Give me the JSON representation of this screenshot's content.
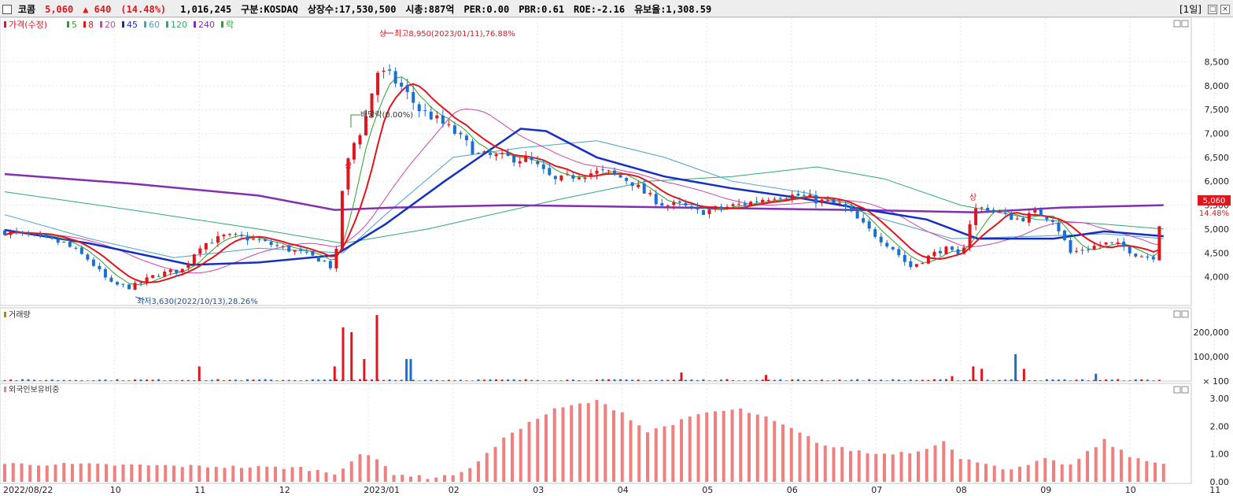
{
  "header": {
    "stock_name": "코콤",
    "price": "5,060",
    "change": "▲ 640",
    "change_pct": "(14.48%)",
    "volume": "1,016,245",
    "market": "구분:KOSDAQ",
    "listed_shares": "상장수:17,530,500",
    "market_cap": "시총:887억",
    "per": "PER:0.00",
    "pbr": "PBR:0.61",
    "roe": "ROE:-2.16",
    "float": "유보율:1,308.59",
    "period": "[1일]"
  },
  "colors": {
    "up": "#e0161f",
    "down": "#1a6fd0",
    "ma5": "#2ea02e",
    "ma8": "#e0161f",
    "ma20": "#cc44aa",
    "ma45": "#1530c0",
    "ma60": "#4aa0c8",
    "ma120": "#2ea870",
    "ma240": "#8030b0",
    "foreign": "#f08080"
  },
  "panels": {
    "price_legend": [
      {
        "label": "가격(수정)",
        "color": "#e0161f"
      },
      {
        "label": "5",
        "color": "#2ea02e"
      },
      {
        "label": "8",
        "color": "#e0161f"
      },
      {
        "label": "20",
        "color": "#cc44aa"
      },
      {
        "label": "45",
        "color": "#1530c0"
      },
      {
        "label": "60",
        "color": "#4aa0c8"
      },
      {
        "label": "120",
        "color": "#2ea870"
      },
      {
        "label": "240",
        "color": "#8030b0"
      },
      {
        "label": "락",
        "color": "#2ea02e"
      }
    ],
    "volume_legend": "거래량",
    "foreign_legend": "외국인보유비중"
  },
  "annotations": {
    "high": "최고8,950(2023/01/11),76.88%",
    "low": "최저3,630(2022/10/13),28.26%",
    "dividend": "배당락(0.00%)",
    "limit_up": "상",
    "current_price_tag": "5,060",
    "current_pct_tag": "14.48%"
  },
  "chart_data": [
    {
      "type": "candlestick",
      "panel": "price",
      "y_ticks": [
        4000,
        4500,
        5000,
        5500,
        6000,
        6500,
        7000,
        7500,
        8000,
        8500
      ],
      "y_tick_labels": [
        "4,000",
        "4,500",
        "5,000",
        "5,500",
        "6,000",
        "6,500",
        "7,000",
        "7,500",
        "8,000",
        "8,500"
      ],
      "ylim": [
        3400,
        9300
      ],
      "x_labels": [
        "2022/08/22",
        "10",
        "11",
        "12",
        "2023/01",
        "02",
        "03",
        "04",
        "05",
        "06",
        "07",
        "08",
        "09",
        "10",
        "11"
      ],
      "x_label_months": [
        0,
        1.3,
        2.3,
        3.3,
        4.3,
        5.3,
        6.3,
        7.3,
        8.3,
        9.3,
        10.3,
        11.3,
        12.3,
        13.3,
        14.3
      ],
      "close_anchors": [
        [
          0,
          4950
        ],
        [
          0.3,
          4850
        ],
        [
          0.7,
          4700
        ],
        [
          1.0,
          4350
        ],
        [
          1.25,
          3850
        ],
        [
          1.5,
          3780
        ],
        [
          1.8,
          4050
        ],
        [
          2.1,
          4150
        ],
        [
          2.3,
          4650
        ],
        [
          2.6,
          4850
        ],
        [
          2.9,
          4800
        ],
        [
          3.2,
          4650
        ],
        [
          3.5,
          4500
        ],
        [
          3.75,
          4350
        ],
        [
          3.9,
          4150
        ],
        [
          4.0,
          6000
        ],
        [
          4.1,
          6700
        ],
        [
          4.25,
          7200
        ],
        [
          4.4,
          8300
        ],
        [
          4.55,
          8200
        ],
        [
          4.7,
          7950
        ],
        [
          4.9,
          7500
        ],
        [
          5.1,
          7300
        ],
        [
          5.3,
          7050
        ],
        [
          5.6,
          6550
        ],
        [
          5.9,
          6500
        ],
        [
          6.2,
          6450
        ],
        [
          6.5,
          6000
        ],
        [
          6.8,
          6150
        ],
        [
          7.1,
          6200
        ],
        [
          7.4,
          6000
        ],
        [
          7.6,
          5700
        ],
        [
          7.8,
          5500
        ],
        [
          8.0,
          5500
        ],
        [
          8.2,
          5350
        ],
        [
          8.5,
          5450
        ],
        [
          8.8,
          5550
        ],
        [
          9.1,
          5700
        ],
        [
          9.4,
          5700
        ],
        [
          9.6,
          5600
        ],
        [
          9.9,
          5500
        ],
        [
          10.2,
          5000
        ],
        [
          10.5,
          4600
        ],
        [
          10.7,
          4200
        ],
        [
          10.9,
          4400
        ],
        [
          11.1,
          4600
        ],
        [
          11.3,
          4400
        ],
        [
          11.45,
          5400
        ],
        [
          11.6,
          5450
        ],
        [
          11.8,
          5300
        ],
        [
          12.0,
          5200
        ],
        [
          12.2,
          5350
        ],
        [
          12.4,
          5200
        ],
        [
          12.6,
          4500
        ],
        [
          12.8,
          4600
        ],
        [
          13.0,
          4700
        ],
        [
          13.2,
          4650
        ],
        [
          13.4,
          4450
        ],
        [
          13.6,
          4420
        ],
        [
          13.7,
          5060
        ]
      ],
      "ma_anchors": {
        "ma45": [
          [
            0,
            4980
          ],
          [
            1.0,
            4700
          ],
          [
            2.2,
            4250
          ],
          [
            3.0,
            4300
          ],
          [
            3.9,
            4450
          ],
          [
            4.5,
            5100
          ],
          [
            5.2,
            6000
          ],
          [
            6.1,
            7100
          ],
          [
            6.4,
            7050
          ],
          [
            7.0,
            6500
          ],
          [
            7.8,
            6100
          ],
          [
            8.6,
            5850
          ],
          [
            9.4,
            5650
          ],
          [
            10.2,
            5400
          ],
          [
            10.9,
            5200
          ],
          [
            11.5,
            4800
          ],
          [
            12.4,
            4800
          ],
          [
            13.0,
            4950
          ],
          [
            13.7,
            4850
          ]
        ],
        "ma240": [
          [
            0,
            6150
          ],
          [
            1.5,
            5950
          ],
          [
            3.0,
            5700
          ],
          [
            3.9,
            5400
          ],
          [
            4.6,
            5450
          ],
          [
            6.0,
            5500
          ],
          [
            8.0,
            5450
          ],
          [
            10.0,
            5400
          ],
          [
            11.5,
            5350
          ],
          [
            12.5,
            5450
          ],
          [
            13.7,
            5500
          ]
        ],
        "ma120": [
          [
            0,
            5780
          ],
          [
            1.5,
            5400
          ],
          [
            3.0,
            5000
          ],
          [
            4.0,
            4700
          ],
          [
            5.0,
            5000
          ],
          [
            6.5,
            5600
          ],
          [
            7.6,
            6000
          ],
          [
            8.6,
            6100
          ],
          [
            9.6,
            6300
          ],
          [
            10.4,
            6050
          ],
          [
            11.3,
            5500
          ],
          [
            12.2,
            5200
          ],
          [
            13.0,
            5100
          ],
          [
            13.7,
            5000
          ]
        ],
        "ma60": [
          [
            0,
            5300
          ],
          [
            1.0,
            4800
          ],
          [
            2.0,
            4400
          ],
          [
            3.0,
            4600
          ],
          [
            4.0,
            4500
          ],
          [
            4.5,
            5300
          ],
          [
            5.3,
            6500
          ],
          [
            6.1,
            6700
          ],
          [
            7.0,
            6850
          ],
          [
            7.8,
            6500
          ],
          [
            8.6,
            6000
          ],
          [
            9.5,
            5750
          ],
          [
            10.4,
            5200
          ],
          [
            11.2,
            4800
          ],
          [
            12.2,
            4850
          ],
          [
            13.0,
            4900
          ],
          [
            13.7,
            4800
          ]
        ]
      },
      "high": 8950,
      "low": 3630,
      "last_close": 5060
    },
    {
      "type": "bar",
      "panel": "volume",
      "y_ticks": [
        100,
        100000,
        200000
      ],
      "y_tick_labels": [
        "× 100",
        "100,000",
        "200,000"
      ],
      "ylim": [
        0,
        290000
      ],
      "spikes": [
        [
          2.3,
          60000,
          "up"
        ],
        [
          3.9,
          60000,
          "up"
        ],
        [
          4.0,
          220000,
          "up"
        ],
        [
          4.1,
          200000,
          "up"
        ],
        [
          4.25,
          90000,
          "up"
        ],
        [
          4.4,
          270000,
          "up"
        ],
        [
          4.75,
          90000,
          "down"
        ],
        [
          4.8,
          90000,
          "down"
        ],
        [
          8.0,
          35000,
          "up"
        ],
        [
          9.0,
          25000,
          "up"
        ],
        [
          11.2,
          20000,
          "up"
        ],
        [
          11.45,
          60000,
          "up"
        ],
        [
          11.55,
          50000,
          "up"
        ],
        [
          11.95,
          110000,
          "down"
        ],
        [
          12.05,
          50000,
          "up"
        ],
        [
          12.9,
          30000,
          "down"
        ]
      ]
    },
    {
      "type": "bar",
      "panel": "foreign",
      "y_ticks": [
        0,
        1,
        2,
        3
      ],
      "y_tick_labels": [
        "0.00",
        "1.00",
        "2.00",
        "3.00"
      ],
      "ylim": [
        0,
        3.4
      ],
      "anchors": [
        [
          0,
          0.65
        ],
        [
          1.5,
          0.6
        ],
        [
          2.5,
          0.55
        ],
        [
          3.5,
          0.5
        ],
        [
          3.9,
          0.3
        ],
        [
          4.2,
          1.0
        ],
        [
          4.4,
          0.8
        ],
        [
          4.6,
          0.3
        ],
        [
          5.0,
          0.15
        ],
        [
          5.4,
          0.3
        ],
        [
          5.7,
          1.0
        ],
        [
          6.0,
          1.8
        ],
        [
          6.5,
          2.6
        ],
        [
          6.8,
          2.8
        ],
        [
          7.0,
          2.9
        ],
        [
          7.3,
          2.5
        ],
        [
          7.6,
          1.8
        ],
        [
          8.0,
          2.2
        ],
        [
          8.3,
          2.5
        ],
        [
          8.7,
          2.6
        ],
        [
          9.0,
          2.3
        ],
        [
          9.3,
          1.9
        ],
        [
          9.7,
          1.3
        ],
        [
          10.3,
          1.0
        ],
        [
          10.8,
          1.1
        ],
        [
          11.1,
          1.5
        ],
        [
          11.3,
          0.8
        ],
        [
          11.6,
          0.7
        ],
        [
          11.9,
          0.4
        ],
        [
          12.3,
          0.8
        ],
        [
          12.6,
          0.6
        ],
        [
          13.0,
          1.5
        ],
        [
          13.3,
          0.9
        ],
        [
          13.5,
          0.8
        ],
        [
          13.7,
          0.65
        ]
      ]
    }
  ]
}
